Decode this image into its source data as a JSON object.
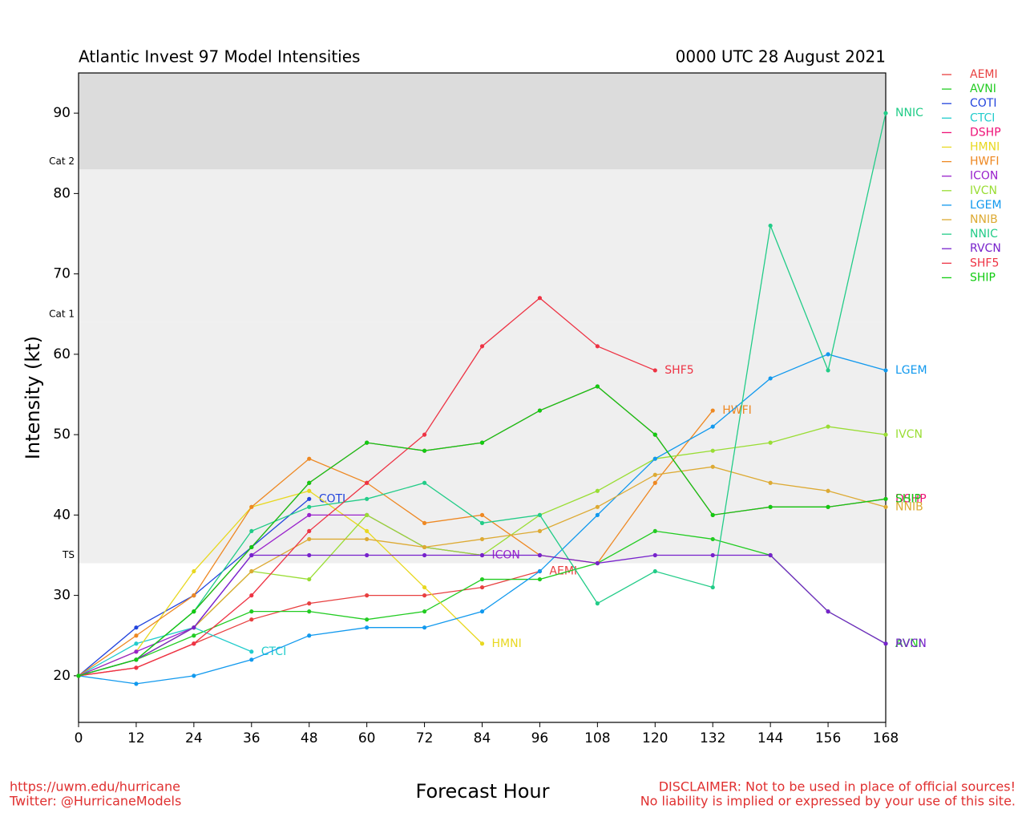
{
  "chart_data": {
    "type": "line",
    "title": "Atlantic Invest 97 Model Intensities",
    "subtitle": "0000 UTC 28 August 2021",
    "x_label": "Forecast Hour",
    "y_label": "Intensity (kt)",
    "x": [
      0,
      12,
      24,
      36,
      48,
      60,
      72,
      84,
      96,
      108,
      120,
      132,
      144,
      156,
      168
    ],
    "xlim": [
      0,
      168
    ],
    "xticks": [
      0,
      12,
      24,
      36,
      48,
      60,
      72,
      84,
      96,
      108,
      120,
      132,
      144,
      156,
      168
    ],
    "ylim": [
      14.2,
      95
    ],
    "yticks": [
      20,
      30,
      40,
      50,
      60,
      70,
      80,
      90
    ],
    "thresholds": [
      {
        "label": "TS",
        "value": 34
      },
      {
        "label": "Cat 1",
        "value": 64
      },
      {
        "label": "Cat 2",
        "value": 83
      }
    ],
    "series": [
      {
        "name": "AEMI",
        "color": "#e84040",
        "values": [
          20,
          21,
          24,
          27,
          29,
          30,
          30,
          31,
          33,
          null,
          null,
          null,
          null,
          null,
          null
        ]
      },
      {
        "name": "AVNI",
        "color": "#22cc22",
        "values": [
          20,
          22,
          25,
          28,
          28,
          27,
          28,
          32,
          32,
          34,
          38,
          37,
          35,
          28,
          24
        ]
      },
      {
        "name": "COTI",
        "color": "#2244dd",
        "values": [
          20,
          26,
          30,
          36,
          42,
          null,
          null,
          null,
          null,
          null,
          null,
          null,
          null,
          null,
          null
        ]
      },
      {
        "name": "CTCI",
        "color": "#22cccc",
        "values": [
          20,
          24,
          26,
          23,
          null,
          null,
          null,
          null,
          null,
          null,
          null,
          null,
          null,
          null,
          null
        ]
      },
      {
        "name": "DSHP",
        "color": "#ee1177",
        "values": [
          20,
          22,
          28,
          36,
          44,
          49,
          48,
          49,
          53,
          56,
          50,
          40,
          41,
          41,
          42
        ]
      },
      {
        "name": "HMNI",
        "color": "#e8d820",
        "values": [
          20,
          23,
          33,
          41,
          43,
          38,
          31,
          24,
          null,
          null,
          null,
          null,
          null,
          null,
          null
        ]
      },
      {
        "name": "HWFI",
        "color": "#ee8822",
        "values": [
          20,
          25,
          30,
          41,
          47,
          44,
          39,
          40,
          35,
          34,
          44,
          53,
          null,
          null,
          null
        ]
      },
      {
        "name": "ICON",
        "color": "#9922cc",
        "values": [
          20,
          23,
          26,
          35,
          40,
          40,
          36,
          35,
          null,
          null,
          null,
          null,
          null,
          null,
          null
        ]
      },
      {
        "name": "IVCN",
        "color": "#99dd33",
        "values": [
          20,
          22,
          26,
          33,
          32,
          40,
          36,
          35,
          40,
          43,
          47,
          48,
          49,
          51,
          50
        ]
      },
      {
        "name": "LGEM",
        "color": "#1199ee",
        "values": [
          20,
          19,
          20,
          22,
          25,
          26,
          26,
          28,
          33,
          40,
          47,
          51,
          57,
          60,
          58
        ]
      },
      {
        "name": "NNIB",
        "color": "#ddaa33",
        "values": [
          20,
          22,
          26,
          33,
          37,
          37,
          36,
          37,
          38,
          41,
          45,
          46,
          44,
          43,
          41
        ]
      },
      {
        "name": "NNIC",
        "color": "#22cc88",
        "values": [
          20,
          22,
          28,
          38,
          41,
          42,
          44,
          39,
          40,
          29,
          33,
          31,
          76,
          58,
          90
        ]
      },
      {
        "name": "RVCN",
        "color": "#7722cc",
        "values": [
          20,
          22,
          26,
          35,
          35,
          35,
          35,
          35,
          35,
          34,
          35,
          35,
          35,
          28,
          24
        ]
      },
      {
        "name": "SHF5",
        "color": "#ee3344",
        "values": [
          20,
          21,
          24,
          30,
          38,
          44,
          50,
          61,
          67,
          61,
          58,
          null,
          null,
          null,
          null
        ]
      },
      {
        "name": "SHIP",
        "color": "#11cc11",
        "values": [
          20,
          22,
          28,
          36,
          44,
          49,
          48,
          49,
          53,
          56,
          50,
          40,
          41,
          41,
          42
        ]
      }
    ],
    "credits": [
      "https://uwm.edu/hurricane",
      "Twitter: @HurricaneModels"
    ],
    "disclaimer": [
      "DISCLAIMER: Not to be used in place of official sources!",
      "No liability is implied or expressed by your use of this site."
    ]
  }
}
